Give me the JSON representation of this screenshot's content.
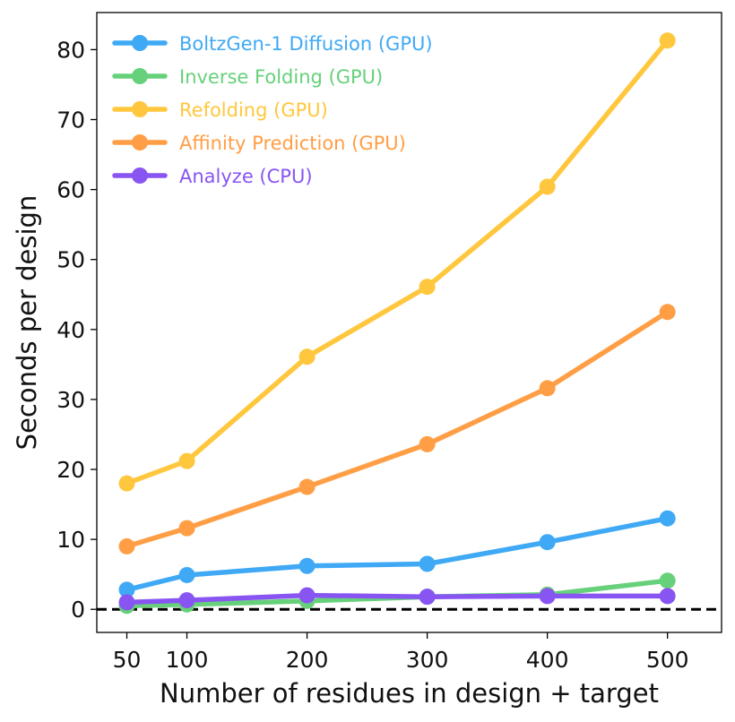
{
  "chart_data": {
    "type": "line",
    "xlabel": "Number of residues in design + target",
    "ylabel": "Seconds per design",
    "x": [
      50,
      100,
      200,
      300,
      400,
      500
    ],
    "xticks": [
      50,
      100,
      200,
      300,
      400,
      500
    ],
    "xtick_labels": [
      "50",
      "100",
      "200",
      "300",
      "400",
      "500"
    ],
    "yticks": [
      0,
      10,
      20,
      30,
      40,
      50,
      60,
      70,
      80
    ],
    "ytick_labels": [
      "0",
      "10",
      "20",
      "30",
      "40",
      "50",
      "60",
      "70",
      "80"
    ],
    "xlim": [
      25,
      545
    ],
    "ylim": [
      -3.3,
      85.3
    ],
    "grid": false,
    "legend_position": "top-left",
    "reference_line": {
      "y": 0,
      "style": "dashed",
      "color": "#000000"
    },
    "series": [
      {
        "name": "BoltzGen-1 Diffusion (GPU)",
        "color": "#3FA9F5",
        "values": [
          2.8,
          4.9,
          6.2,
          6.5,
          9.6,
          13.0
        ]
      },
      {
        "name": "Inverse Folding (GPU)",
        "color": "#66D17A",
        "values": [
          0.5,
          0.7,
          1.2,
          1.8,
          2.1,
          4.1
        ]
      },
      {
        "name": "Refolding (GPU)",
        "color": "#FFC73D",
        "values": [
          18.0,
          21.2,
          36.1,
          46.1,
          60.4,
          81.3
        ]
      },
      {
        "name": "Affinity Prediction (GPU)",
        "color": "#FF9E45",
        "values": [
          9.0,
          11.6,
          17.5,
          23.6,
          31.6,
          42.5
        ]
      },
      {
        "name": "Analyze  (CPU)",
        "color": "#8855F2",
        "values": [
          1.0,
          1.3,
          2.0,
          1.8,
          1.9,
          1.9
        ]
      }
    ]
  }
}
